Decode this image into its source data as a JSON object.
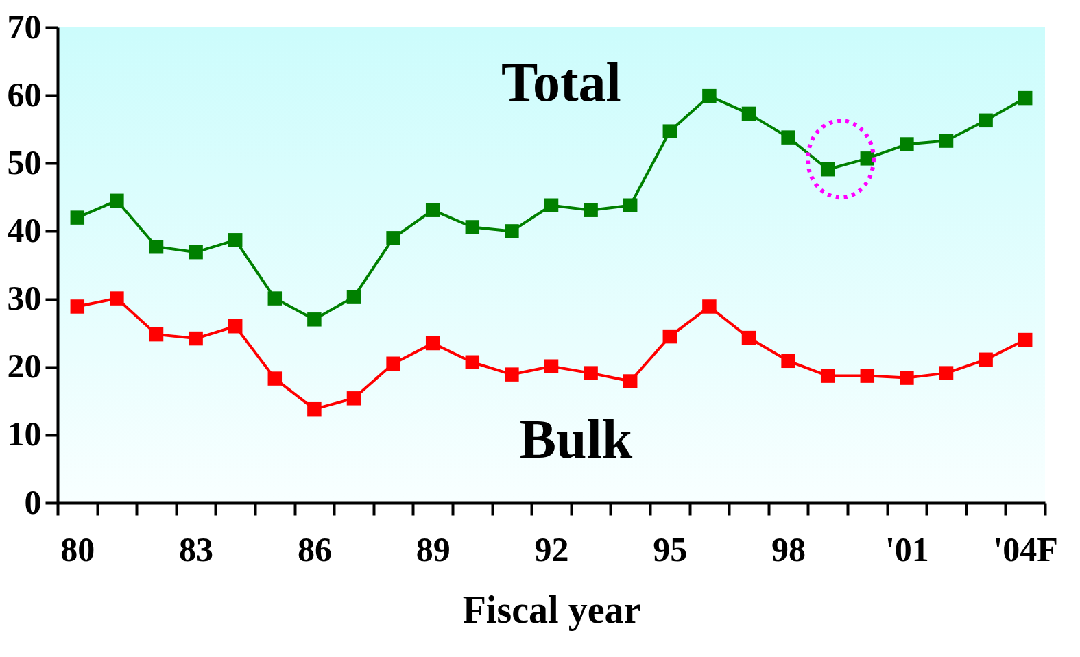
{
  "chart_data": {
    "type": "line",
    "xlabel": "Fiscal year",
    "categories": [
      "80",
      null,
      null,
      "83",
      null,
      null,
      "86",
      null,
      null,
      "89",
      null,
      null,
      "92",
      null,
      null,
      "95",
      null,
      null,
      "98",
      null,
      null,
      "'01",
      null,
      null,
      "'04F"
    ],
    "series": [
      {
        "name": "Total",
        "color": "#008000",
        "values": [
          42.0,
          44.5,
          37.7,
          36.9,
          38.7,
          30.1,
          27.0,
          30.3,
          39.0,
          43.1,
          40.6,
          40.0,
          43.8,
          43.1,
          43.8,
          54.7,
          59.9,
          57.3,
          53.8,
          49.1,
          50.7,
          52.8,
          53.3,
          56.3,
          59.6
        ]
      },
      {
        "name": "Bulk",
        "color": "#ff0000",
        "values": [
          28.9,
          30.1,
          24.8,
          24.2,
          26.0,
          18.3,
          13.8,
          15.4,
          20.5,
          23.5,
          20.7,
          18.9,
          20.1,
          19.1,
          17.9,
          24.5,
          28.9,
          24.3,
          20.9,
          18.7,
          18.7,
          18.4,
          19.1,
          21.1,
          24.0
        ]
      }
    ],
    "ylim": [
      0,
      70
    ],
    "yticks": [
      0,
      10,
      20,
      30,
      40,
      50,
      60,
      70
    ],
    "marker": "square",
    "line_style": "solid"
  }
}
